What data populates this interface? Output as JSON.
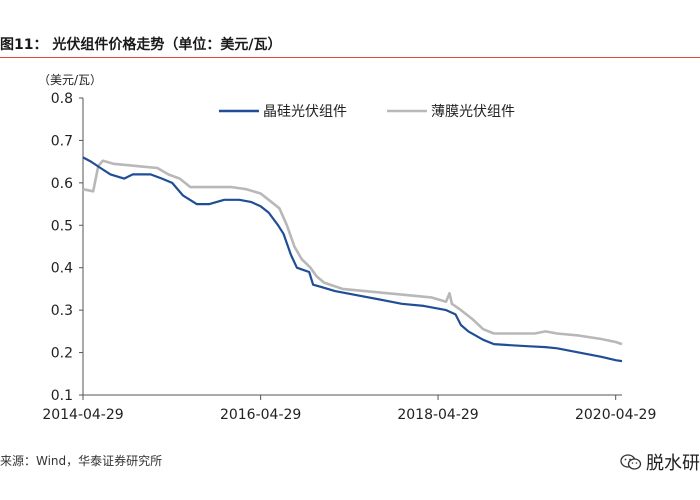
{
  "figure": {
    "title": "图11：  光伏组件价格走势（单位：美元/瓦）",
    "source": "来源：Wind，华泰证券研究所",
    "watermark": "脱水研"
  },
  "chart_data": {
    "type": "line",
    "title": "",
    "ylabel": "（美元/瓦）",
    "xlabel": "",
    "ylim": [
      0.1,
      0.8
    ],
    "yticks": [
      0.1,
      0.2,
      0.3,
      0.4,
      0.5,
      0.6,
      0.7,
      0.8
    ],
    "xlim": [
      "2014-04-29",
      "2020-05-25"
    ],
    "xticks": [
      "2014-04-29",
      "2016-04-29",
      "2018-04-29",
      "2020-04-29"
    ],
    "grid": false,
    "legend_position": "top",
    "series": [
      {
        "name": "晶硅光伏组件",
        "color": "#1f4e96",
        "points": [
          [
            "2014-04-29",
            0.66
          ],
          [
            "2014-06-01",
            0.65
          ],
          [
            "2014-07-10",
            0.635
          ],
          [
            "2014-08-20",
            0.62
          ],
          [
            "2014-10-15",
            0.61
          ],
          [
            "2014-11-20",
            0.62
          ],
          [
            "2015-02-01",
            0.62
          ],
          [
            "2015-03-20",
            0.61
          ],
          [
            "2015-05-01",
            0.6
          ],
          [
            "2015-06-15",
            0.57
          ],
          [
            "2015-08-10",
            0.55
          ],
          [
            "2015-10-01",
            0.55
          ],
          [
            "2015-12-01",
            0.56
          ],
          [
            "2016-02-01",
            0.56
          ],
          [
            "2016-03-20",
            0.555
          ],
          [
            "2016-04-29",
            0.545
          ],
          [
            "2016-06-01",
            0.53
          ],
          [
            "2016-07-10",
            0.5
          ],
          [
            "2016-08-01",
            0.48
          ],
          [
            "2016-09-01",
            0.43
          ],
          [
            "2016-09-25",
            0.4
          ],
          [
            "2016-10-20",
            0.395
          ],
          [
            "2016-11-15",
            0.39
          ],
          [
            "2016-12-01",
            0.36
          ],
          [
            "2017-01-01",
            0.355
          ],
          [
            "2017-03-01",
            0.345
          ],
          [
            "2017-06-01",
            0.335
          ],
          [
            "2017-09-01",
            0.325
          ],
          [
            "2017-12-01",
            0.315
          ],
          [
            "2018-03-01",
            0.31
          ],
          [
            "2018-06-01",
            0.3
          ],
          [
            "2018-07-10",
            0.29
          ],
          [
            "2018-08-01",
            0.265
          ],
          [
            "2018-09-01",
            0.25
          ],
          [
            "2018-11-01",
            0.23
          ],
          [
            "2018-12-15",
            0.22
          ],
          [
            "2019-02-01",
            0.218
          ],
          [
            "2019-05-01",
            0.215
          ],
          [
            "2019-07-15",
            0.213
          ],
          [
            "2019-09-01",
            0.21
          ],
          [
            "2019-12-01",
            0.2
          ],
          [
            "2020-03-01",
            0.19
          ],
          [
            "2020-04-29",
            0.182
          ],
          [
            "2020-05-25",
            0.18
          ]
        ]
      },
      {
        "name": "薄膜光伏组件",
        "color": "#b8b8b8",
        "points": [
          [
            "2014-04-29",
            0.585
          ],
          [
            "2014-06-10",
            0.58
          ],
          [
            "2014-07-01",
            0.64
          ],
          [
            "2014-07-20",
            0.652
          ],
          [
            "2014-09-01",
            0.645
          ],
          [
            "2014-12-01",
            0.64
          ],
          [
            "2015-03-01",
            0.635
          ],
          [
            "2015-04-15",
            0.62
          ],
          [
            "2015-06-01",
            0.61
          ],
          [
            "2015-07-15",
            0.59
          ],
          [
            "2015-10-01",
            0.59
          ],
          [
            "2016-01-01",
            0.59
          ],
          [
            "2016-03-01",
            0.585
          ],
          [
            "2016-04-29",
            0.575
          ],
          [
            "2016-06-01",
            0.56
          ],
          [
            "2016-07-15",
            0.54
          ],
          [
            "2016-08-15",
            0.5
          ],
          [
            "2016-09-15",
            0.45
          ],
          [
            "2016-10-15",
            0.42
          ],
          [
            "2016-11-20",
            0.4
          ],
          [
            "2016-12-15",
            0.38
          ],
          [
            "2017-01-15",
            0.365
          ],
          [
            "2017-04-01",
            0.35
          ],
          [
            "2017-07-01",
            0.345
          ],
          [
            "2017-10-01",
            0.34
          ],
          [
            "2018-01-01",
            0.335
          ],
          [
            "2018-04-01",
            0.33
          ],
          [
            "2018-06-01",
            0.32
          ],
          [
            "2018-06-15",
            0.34
          ],
          [
            "2018-06-25",
            0.315
          ],
          [
            "2018-08-01",
            0.3
          ],
          [
            "2018-09-15",
            0.28
          ],
          [
            "2018-11-01",
            0.255
          ],
          [
            "2018-12-15",
            0.245
          ],
          [
            "2019-03-01",
            0.245
          ],
          [
            "2019-06-01",
            0.245
          ],
          [
            "2019-07-15",
            0.25
          ],
          [
            "2019-09-01",
            0.245
          ],
          [
            "2019-12-01",
            0.24
          ],
          [
            "2020-03-01",
            0.232
          ],
          [
            "2020-04-29",
            0.225
          ],
          [
            "2020-05-25",
            0.22
          ]
        ]
      }
    ]
  }
}
